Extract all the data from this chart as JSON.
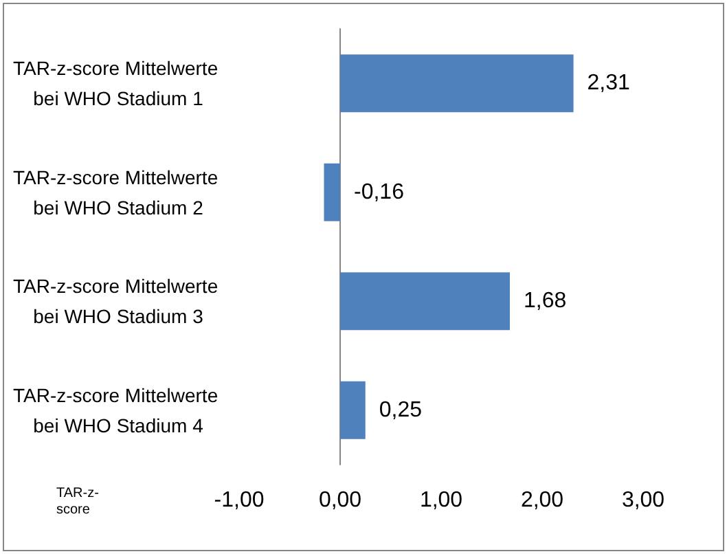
{
  "chart_data": {
    "type": "bar",
    "orientation": "horizontal",
    "xlabel": "TAR-z-score",
    "categories": [
      "TAR-z-score Mittelwerte bei WHO Stadium 1",
      "TAR-z-score Mittelwerte bei WHO Stadium 2",
      "TAR-z-score Mittelwerte bei WHO Stadium 3",
      "TAR-z-score Mittelwerte bei WHO Stadium 4"
    ],
    "values": [
      2.31,
      -0.16,
      1.68,
      0.25
    ],
    "value_labels": [
      "2,31",
      "-0,16",
      "1,68",
      "0,25"
    ],
    "color": "#4f81bd",
    "xlim": [
      -1,
      3
    ],
    "xticks": [
      {
        "value": -1,
        "label": "-1,00"
      },
      {
        "value": 0,
        "label": "0,00"
      },
      {
        "value": 1,
        "label": "1,00"
      },
      {
        "value": 2,
        "label": "2,00"
      },
      {
        "value": 3,
        "label": "3,00"
      }
    ]
  }
}
